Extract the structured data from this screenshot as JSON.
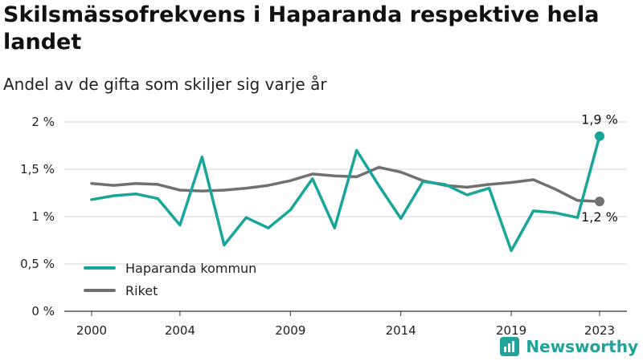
{
  "header": {
    "title": "Skilsmässofrekvens i Haparanda respektive hela landet",
    "subtitle": "Andel av de gifta som skiljer sig varje år"
  },
  "brand": {
    "name": "Newsworthy",
    "icon": "newsworthy-logo-icon",
    "color": "#22a39a"
  },
  "chart_data": {
    "type": "line",
    "title": "Skilsmässofrekvens i Haparanda respektive hela landet",
    "subtitle": "Andel av de gifta som skiljer sig varje år",
    "x": [
      2000,
      2001,
      2002,
      2003,
      2004,
      2005,
      2006,
      2007,
      2008,
      2009,
      2010,
      2011,
      2012,
      2013,
      2014,
      2015,
      2016,
      2017,
      2018,
      2019,
      2020,
      2021,
      2022,
      2023
    ],
    "x_tick_labels": [
      "2000",
      "2004",
      "2009",
      "2014",
      "2019",
      "2023"
    ],
    "x_ticks": [
      2000,
      2004,
      2009,
      2014,
      2019,
      2023
    ],
    "y_ticks": [
      0,
      0.5,
      1,
      1.5,
      2
    ],
    "y_tick_labels": [
      "0 %",
      "0,5 %",
      "1 %",
      "1,5 %",
      "2 %"
    ],
    "ylim": [
      0,
      2
    ],
    "grid": true,
    "legend_position": "bottom-left",
    "series": [
      {
        "name": "Haparanda kommun",
        "color": "#1aa59b",
        "values": [
          1.18,
          1.22,
          1.24,
          1.19,
          0.91,
          1.63,
          0.7,
          0.99,
          0.88,
          1.07,
          1.4,
          0.88,
          1.7,
          1.33,
          0.98,
          1.37,
          1.34,
          1.23,
          1.3,
          0.64,
          1.06,
          1.04,
          0.99,
          1.85
        ],
        "end_label": "1,9 %"
      },
      {
        "name": "Riket",
        "color": "#707070",
        "values": [
          1.35,
          1.33,
          1.35,
          1.34,
          1.28,
          1.27,
          1.28,
          1.3,
          1.33,
          1.38,
          1.45,
          1.43,
          1.42,
          1.52,
          1.47,
          1.38,
          1.33,
          1.31,
          1.34,
          1.36,
          1.39,
          1.29,
          1.17,
          1.16
        ],
        "end_label": "1,2 %"
      }
    ]
  }
}
